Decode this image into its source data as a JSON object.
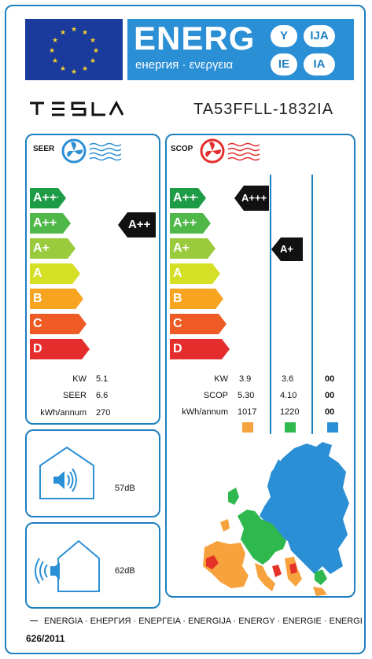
{
  "header": {
    "title": "ENERG",
    "subtitle": "енергия · ενεργεια",
    "badges": [
      "Y",
      "IJA",
      "IE",
      "IA"
    ]
  },
  "brand": {
    "name": "TESLA"
  },
  "model": "TA53FFLL-1832IA",
  "classes": [
    "A+++",
    "A++",
    "A+",
    "A",
    "B",
    "C",
    "D"
  ],
  "class_colors": [
    "#1e9b46",
    "#50b848",
    "#9acb3c",
    "#d5df26",
    "#f7a521",
    "#ee5b25",
    "#e52d2d"
  ],
  "cooling": {
    "title": "SEER",
    "rating": "A++",
    "rows": [
      {
        "label": "KW",
        "value": "5.1"
      },
      {
        "label": "SEER",
        "value": "6.6"
      },
      {
        "label": "kWh/annum",
        "value": "270"
      }
    ]
  },
  "heating": {
    "title": "SCOP",
    "ratings": [
      "A+++",
      "A+"
    ],
    "rows": [
      {
        "label": "KW",
        "values": [
          "3.9",
          "3.6",
          "00"
        ]
      },
      {
        "label": "SCOP",
        "values": [
          "5.30",
          "4.10",
          "00"
        ]
      },
      {
        "label": "kWh/annum",
        "values": [
          "1017",
          "1220",
          "00"
        ]
      }
    ],
    "zone_colors": [
      "#f7a33d",
      "#2fb84e",
      "#2b8fd6"
    ]
  },
  "noise": {
    "indoor": "57dB",
    "outdoor": "62dB"
  },
  "footer": {
    "languages": "ENERGIA · ЕНЕРГИЯ · ΕΝΕΡΓΕΙΑ · ENERGIJA · ENERGY · ENERGIE · ENERGI",
    "regulation": "626/2011"
  }
}
